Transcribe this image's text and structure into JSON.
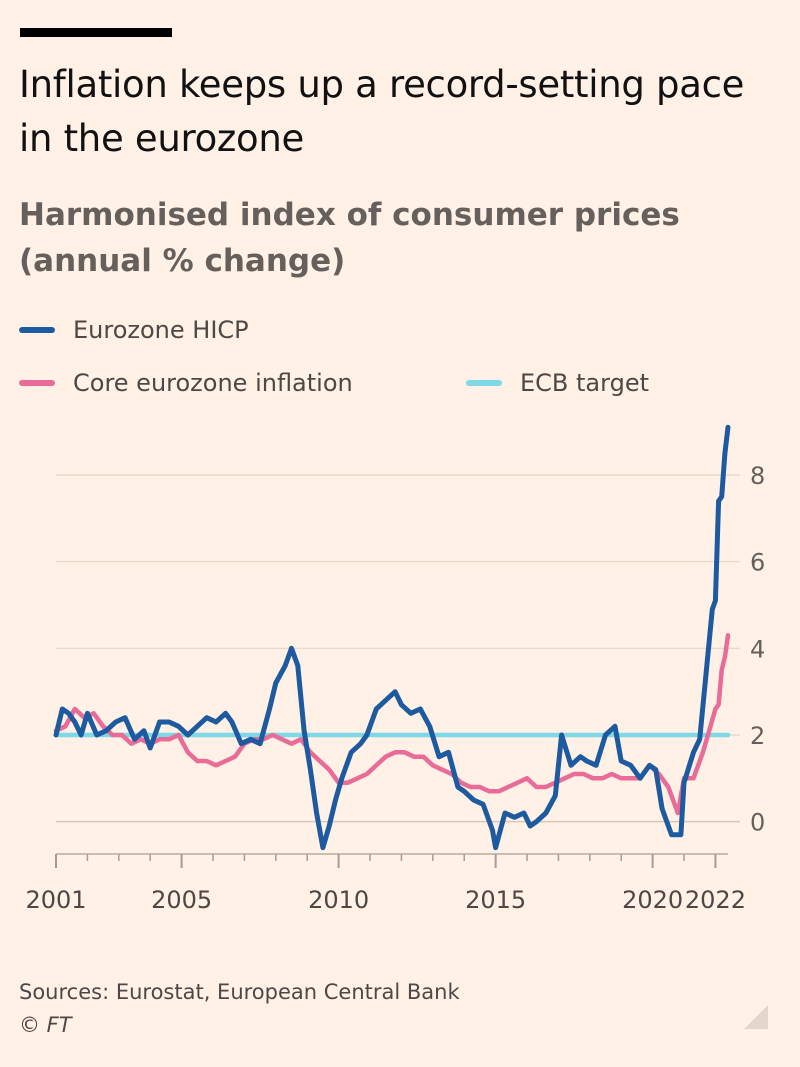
{
  "header": {
    "title": "Inflation keeps up a record-setting pace in the eurozone",
    "subtitle": "Harmonised index of consumer prices (annual % change)"
  },
  "legend": {
    "hicp": {
      "label": "Eurozone HICP",
      "color": "#1e5aa0"
    },
    "core": {
      "label": "Core eurozone inflation",
      "color": "#e86c97"
    },
    "target": {
      "label": "ECB target",
      "color": "#7fd8e6"
    }
  },
  "footer": {
    "sources": "Sources: Eurostat, European Central Bank",
    "copyright": "© FT"
  },
  "chart_data": {
    "type": "line",
    "title": "Inflation keeps up a record-setting pace in the eurozone",
    "subtitle": "Harmonised index of consumer prices (annual % change)",
    "xlabel": "",
    "ylabel": "",
    "xlim": [
      2001,
      2022.4
    ],
    "ylim": [
      -0.7,
      9.5
    ],
    "x_ticks": [
      2001,
      2005,
      2010,
      2015,
      2020,
      2022
    ],
    "y_ticks": [
      0,
      2,
      4,
      6,
      8
    ],
    "grid": true,
    "legend_position": "top-left",
    "series": [
      {
        "name": "Eurozone HICP",
        "color": "#1e5aa0",
        "points": [
          [
            2001.0,
            2.0
          ],
          [
            2001.2,
            2.6
          ],
          [
            2001.4,
            2.5
          ],
          [
            2001.6,
            2.3
          ],
          [
            2001.8,
            2.0
          ],
          [
            2002.0,
            2.5
          ],
          [
            2002.3,
            2.0
          ],
          [
            2002.6,
            2.1
          ],
          [
            2002.9,
            2.3
          ],
          [
            2003.2,
            2.4
          ],
          [
            2003.5,
            1.9
          ],
          [
            2003.8,
            2.1
          ],
          [
            2004.0,
            1.7
          ],
          [
            2004.3,
            2.3
          ],
          [
            2004.6,
            2.3
          ],
          [
            2004.9,
            2.2
          ],
          [
            2005.2,
            2.0
          ],
          [
            2005.5,
            2.2
          ],
          [
            2005.8,
            2.4
          ],
          [
            2006.1,
            2.3
          ],
          [
            2006.4,
            2.5
          ],
          [
            2006.6,
            2.3
          ],
          [
            2006.9,
            1.8
          ],
          [
            2007.2,
            1.9
          ],
          [
            2007.5,
            1.8
          ],
          [
            2007.8,
            2.6
          ],
          [
            2008.0,
            3.2
          ],
          [
            2008.3,
            3.6
          ],
          [
            2008.5,
            4.0
          ],
          [
            2008.7,
            3.6
          ],
          [
            2008.9,
            2.1
          ],
          [
            2009.1,
            1.2
          ],
          [
            2009.3,
            0.2
          ],
          [
            2009.5,
            -0.6
          ],
          [
            2009.7,
            -0.1
          ],
          [
            2009.9,
            0.5
          ],
          [
            2010.1,
            1.0
          ],
          [
            2010.4,
            1.6
          ],
          [
            2010.7,
            1.8
          ],
          [
            2010.9,
            2.0
          ],
          [
            2011.2,
            2.6
          ],
          [
            2011.5,
            2.8
          ],
          [
            2011.8,
            3.0
          ],
          [
            2012.0,
            2.7
          ],
          [
            2012.3,
            2.5
          ],
          [
            2012.6,
            2.6
          ],
          [
            2012.9,
            2.2
          ],
          [
            2013.2,
            1.5
          ],
          [
            2013.5,
            1.6
          ],
          [
            2013.8,
            0.8
          ],
          [
            2014.0,
            0.7
          ],
          [
            2014.3,
            0.5
          ],
          [
            2014.6,
            0.4
          ],
          [
            2014.9,
            -0.2
          ],
          [
            2015.0,
            -0.6
          ],
          [
            2015.3,
            0.2
          ],
          [
            2015.6,
            0.1
          ],
          [
            2015.9,
            0.2
          ],
          [
            2016.1,
            -0.1
          ],
          [
            2016.3,
            0.0
          ],
          [
            2016.6,
            0.2
          ],
          [
            2016.9,
            0.6
          ],
          [
            2017.1,
            2.0
          ],
          [
            2017.4,
            1.3
          ],
          [
            2017.7,
            1.5
          ],
          [
            2017.9,
            1.4
          ],
          [
            2018.2,
            1.3
          ],
          [
            2018.5,
            2.0
          ],
          [
            2018.8,
            2.2
          ],
          [
            2019.0,
            1.4
          ],
          [
            2019.3,
            1.3
          ],
          [
            2019.6,
            1.0
          ],
          [
            2019.9,
            1.3
          ],
          [
            2020.1,
            1.2
          ],
          [
            2020.3,
            0.3
          ],
          [
            2020.6,
            -0.3
          ],
          [
            2020.9,
            -0.3
          ],
          [
            2021.0,
            0.9
          ],
          [
            2021.3,
            1.6
          ],
          [
            2021.5,
            1.9
          ],
          [
            2021.7,
            3.4
          ],
          [
            2021.9,
            4.9
          ],
          [
            2022.0,
            5.1
          ],
          [
            2022.1,
            7.4
          ],
          [
            2022.2,
            7.5
          ],
          [
            2022.3,
            8.5
          ],
          [
            2022.4,
            9.1
          ]
        ]
      },
      {
        "name": "Core eurozone inflation",
        "color": "#e86c97",
        "points": [
          [
            2001.0,
            2.1
          ],
          [
            2001.3,
            2.2
          ],
          [
            2001.6,
            2.6
          ],
          [
            2001.9,
            2.4
          ],
          [
            2002.2,
            2.5
          ],
          [
            2002.5,
            2.2
          ],
          [
            2002.8,
            2.0
          ],
          [
            2003.1,
            2.0
          ],
          [
            2003.4,
            1.8
          ],
          [
            2003.7,
            1.9
          ],
          [
            2004.0,
            1.8
          ],
          [
            2004.3,
            1.9
          ],
          [
            2004.6,
            1.9
          ],
          [
            2004.9,
            2.0
          ],
          [
            2005.2,
            1.6
          ],
          [
            2005.5,
            1.4
          ],
          [
            2005.8,
            1.4
          ],
          [
            2006.1,
            1.3
          ],
          [
            2006.4,
            1.4
          ],
          [
            2006.7,
            1.5
          ],
          [
            2007.0,
            1.8
          ],
          [
            2007.3,
            1.9
          ],
          [
            2007.6,
            1.9
          ],
          [
            2007.9,
            2.0
          ],
          [
            2008.2,
            1.9
          ],
          [
            2008.5,
            1.8
          ],
          [
            2008.8,
            1.9
          ],
          [
            2009.1,
            1.6
          ],
          [
            2009.4,
            1.4
          ],
          [
            2009.7,
            1.2
          ],
          [
            2010.0,
            0.9
          ],
          [
            2010.3,
            0.9
          ],
          [
            2010.6,
            1.0
          ],
          [
            2010.9,
            1.1
          ],
          [
            2011.2,
            1.3
          ],
          [
            2011.5,
            1.5
          ],
          [
            2011.8,
            1.6
          ],
          [
            2012.1,
            1.6
          ],
          [
            2012.4,
            1.5
          ],
          [
            2012.7,
            1.5
          ],
          [
            2013.0,
            1.3
          ],
          [
            2013.3,
            1.2
          ],
          [
            2013.6,
            1.1
          ],
          [
            2013.9,
            0.9
          ],
          [
            2014.2,
            0.8
          ],
          [
            2014.5,
            0.8
          ],
          [
            2014.8,
            0.7
          ],
          [
            2015.1,
            0.7
          ],
          [
            2015.4,
            0.8
          ],
          [
            2015.7,
            0.9
          ],
          [
            2016.0,
            1.0
          ],
          [
            2016.3,
            0.8
          ],
          [
            2016.6,
            0.8
          ],
          [
            2016.9,
            0.9
          ],
          [
            2017.2,
            1.0
          ],
          [
            2017.5,
            1.1
          ],
          [
            2017.8,
            1.1
          ],
          [
            2018.1,
            1.0
          ],
          [
            2018.4,
            1.0
          ],
          [
            2018.7,
            1.1
          ],
          [
            2019.0,
            1.0
          ],
          [
            2019.3,
            1.0
          ],
          [
            2019.6,
            1.0
          ],
          [
            2019.9,
            1.3
          ],
          [
            2020.2,
            1.1
          ],
          [
            2020.5,
            0.8
          ],
          [
            2020.8,
            0.2
          ],
          [
            2021.0,
            1.0
          ],
          [
            2021.3,
            1.0
          ],
          [
            2021.6,
            1.6
          ],
          [
            2021.8,
            2.1
          ],
          [
            2022.0,
            2.6
          ],
          [
            2022.1,
            2.7
          ],
          [
            2022.2,
            3.5
          ],
          [
            2022.3,
            3.8
          ],
          [
            2022.4,
            4.3
          ]
        ]
      },
      {
        "name": "ECB target",
        "color": "#7fd8e6",
        "points": [
          [
            2001.0,
            2.0
          ],
          [
            2022.4,
            2.0
          ]
        ]
      }
    ]
  }
}
